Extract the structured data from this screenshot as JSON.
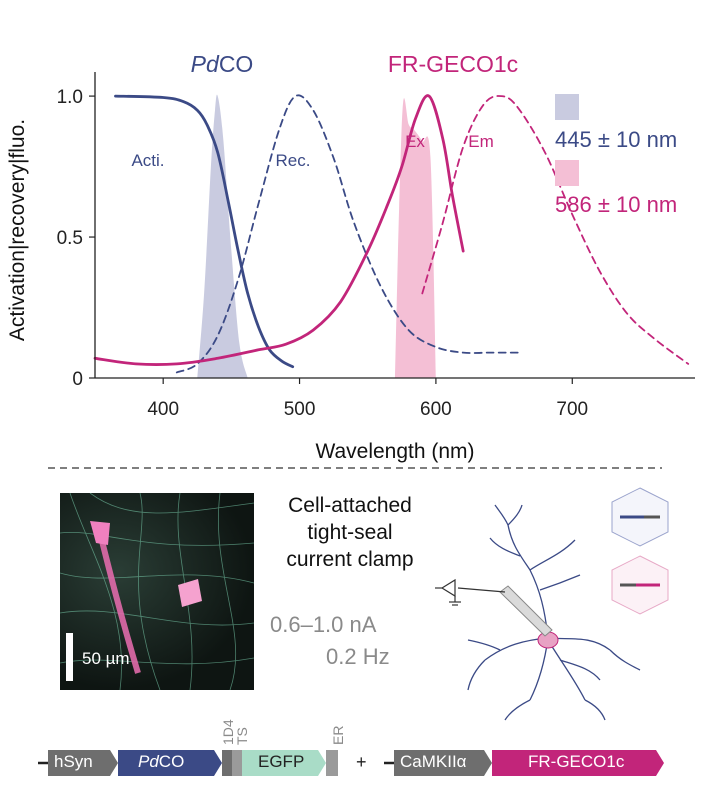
{
  "chart_data": {
    "type": "line",
    "xlabel": "Wavelength (nm)",
    "ylabel": "Activation|recovery|fluo.",
    "xlim": [
      350,
      790
    ],
    "ylim": [
      0,
      1.05
    ],
    "x_ticks": [
      "400",
      "500",
      "600",
      "700"
    ],
    "y_ticks": [
      "0",
      "0.5",
      "1.0"
    ],
    "group_titles": [
      {
        "text_italic": "Pd",
        "text": "CO",
        "color": "#3b4a86"
      },
      {
        "text": "FR-GECO1c",
        "color": "#c2257a"
      }
    ],
    "annotations": [
      "Acti.",
      "Rec.",
      "Ex",
      "Em"
    ],
    "legend": [
      {
        "label": "445 ± 10 nm",
        "color": "#c9cbe0"
      },
      {
        "label": "586 ± 10 nm",
        "color": "#f4bfd5"
      }
    ],
    "series": [
      {
        "name": "Acti.",
        "style": "solid",
        "color": "#3b4a86",
        "x": [
          365,
          400,
          415,
          425,
          432,
          440,
          448,
          455,
          462,
          470,
          478,
          487,
          495
        ],
        "y": [
          1.0,
          0.995,
          0.98,
          0.95,
          0.9,
          0.8,
          0.62,
          0.45,
          0.3,
          0.18,
          0.1,
          0.06,
          0.04
        ]
      },
      {
        "name": "Rec.",
        "style": "dashed",
        "color": "#3b4a86",
        "x": [
          410,
          425,
          440,
          455,
          470,
          485,
          497,
          510,
          525,
          540,
          560,
          580,
          600,
          620,
          640,
          660
        ],
        "y": [
          0.02,
          0.05,
          0.15,
          0.35,
          0.62,
          0.88,
          1.0,
          0.95,
          0.78,
          0.55,
          0.32,
          0.17,
          0.11,
          0.09,
          0.09,
          0.09
        ]
      },
      {
        "name": "Ex",
        "style": "solid",
        "color": "#c2257a",
        "x": [
          350,
          380,
          410,
          440,
          470,
          490,
          510,
          530,
          550,
          565,
          575,
          585,
          595,
          605,
          612,
          620
        ],
        "y": [
          0.07,
          0.05,
          0.05,
          0.07,
          0.1,
          0.12,
          0.17,
          0.27,
          0.45,
          0.62,
          0.75,
          0.92,
          1.0,
          0.85,
          0.65,
          0.45
        ]
      },
      {
        "name": "Em",
        "style": "dashed",
        "color": "#c2257a",
        "x": [
          590,
          605,
          620,
          635,
          648,
          660,
          680,
          700,
          720,
          740,
          760,
          785
        ],
        "y": [
          0.3,
          0.55,
          0.82,
          0.97,
          1.0,
          0.96,
          0.8,
          0.58,
          0.38,
          0.23,
          0.14,
          0.05
        ]
      },
      {
        "name": "445 ± 10 nm",
        "style": "filled",
        "color": "#c9cbe0",
        "x": [
          425,
          430,
          435,
          438,
          440,
          444,
          450,
          456,
          462
        ],
        "y": [
          0,
          0.3,
          0.75,
          0.95,
          1.0,
          0.85,
          0.45,
          0.12,
          0
        ]
      },
      {
        "name": "586 ± 10 nm",
        "style": "filled",
        "color": "#f4bfd5",
        "x": [
          570,
          573,
          576,
          580,
          584,
          590,
          596,
          600
        ],
        "y": [
          0,
          0.6,
          0.98,
          0.9,
          0.88,
          0.84,
          0.78,
          0
        ]
      }
    ]
  },
  "experiment": {
    "title_lines": [
      "Cell-attached",
      "tight-seal",
      "current clamp"
    ],
    "current": "0.6–1.0 nA",
    "frequency": "0.2 Hz"
  },
  "micrograph": {
    "scale_bar": "50 µm"
  },
  "construct": {
    "elements": [
      "hSyn",
      "PdCO",
      "1D4",
      "TS",
      "EGFP",
      "ER"
    ],
    "plus": "+",
    "elements2": [
      "CaMKIIα",
      "FR-GECO1c"
    ],
    "colors": {
      "hSyn": "#6e6e6e",
      "PdCO": "#3b4a86",
      "EGFP": "#a9dcc7",
      "FR-GECO1c": "#c2257a"
    }
  }
}
